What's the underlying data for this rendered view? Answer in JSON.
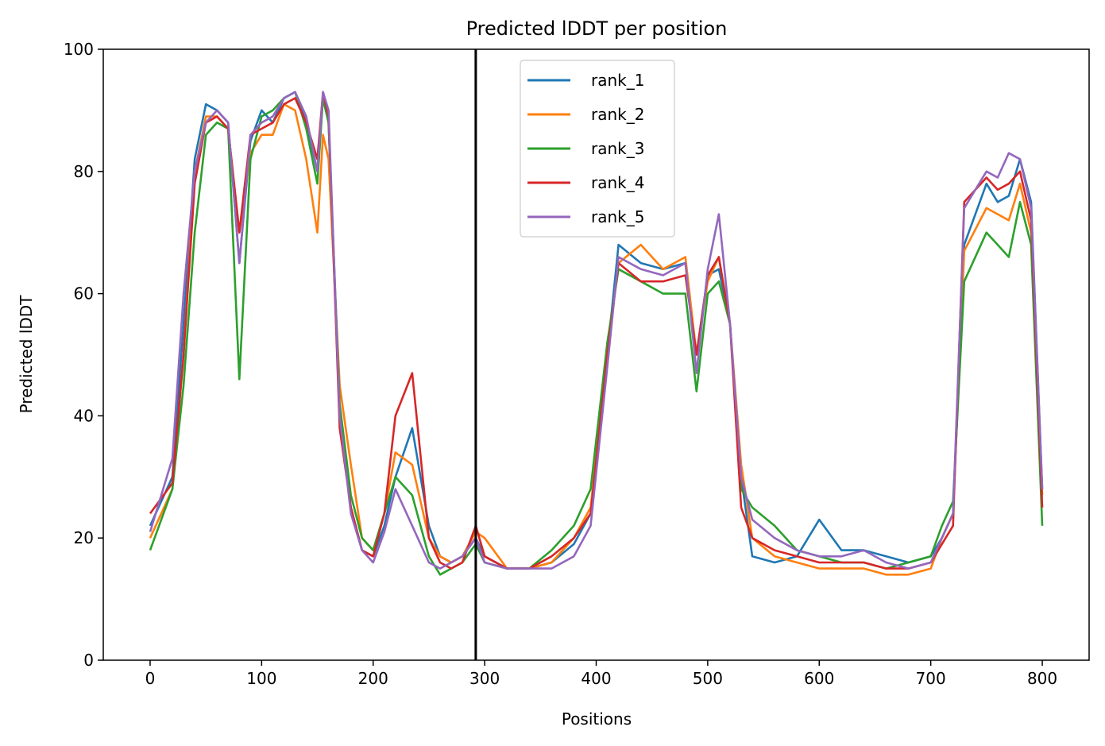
{
  "chart_data": {
    "type": "line",
    "title": "Predicted lDDT per position",
    "xlabel": "Positions",
    "ylabel": "Predicted lDDT",
    "xlim": [
      -42,
      842
    ],
    "ylim": [
      0,
      100
    ],
    "xticks": [
      0,
      100,
      200,
      300,
      400,
      500,
      600,
      700,
      800
    ],
    "yticks": [
      0,
      20,
      40,
      60,
      80,
      100
    ],
    "grid": false,
    "legend_position": "top-center",
    "vline_x": 292,
    "vline_color": "#000000",
    "x": [
      0,
      20,
      30,
      40,
      50,
      60,
      70,
      80,
      90,
      100,
      110,
      120,
      130,
      140,
      150,
      155,
      160,
      170,
      180,
      190,
      200,
      210,
      220,
      235,
      250,
      260,
      270,
      280,
      292,
      300,
      320,
      340,
      360,
      380,
      395,
      410,
      420,
      440,
      460,
      480,
      490,
      500,
      510,
      520,
      530,
      540,
      560,
      580,
      600,
      620,
      640,
      660,
      680,
      700,
      710,
      720,
      730,
      750,
      760,
      770,
      780,
      790,
      800
    ],
    "series": [
      {
        "name": "rank_1",
        "color": "#1f77b4",
        "values": [
          22,
          30,
          55,
          82,
          91,
          90,
          88,
          65,
          85,
          90,
          88,
          92,
          93,
          88,
          80,
          92,
          88,
          40,
          25,
          18,
          17,
          22,
          30,
          38,
          22,
          17,
          16,
          17,
          20,
          17,
          15,
          15,
          16,
          19,
          24,
          50,
          68,
          65,
          64,
          65,
          50,
          63,
          64,
          55,
          30,
          17,
          16,
          17,
          23,
          18,
          18,
          17,
          16,
          17,
          20,
          24,
          68,
          78,
          75,
          76,
          82,
          75,
          28
        ]
      },
      {
        "name": "rank_2",
        "color": "#ff7f0e",
        "values": [
          20,
          28,
          50,
          80,
          89,
          89,
          87,
          70,
          83,
          86,
          86,
          91,
          90,
          82,
          70,
          86,
          82,
          45,
          32,
          20,
          18,
          24,
          34,
          32,
          20,
          17,
          16,
          17,
          21,
          20,
          15,
          15,
          16,
          20,
          25,
          50,
          65,
          68,
          64,
          66,
          50,
          62,
          66,
          55,
          32,
          20,
          17,
          16,
          15,
          15,
          15,
          14,
          14,
          15,
          20,
          24,
          67,
          74,
          73,
          72,
          78,
          70,
          27
        ]
      },
      {
        "name": "rank_3",
        "color": "#2ca02c",
        "values": [
          18,
          28,
          45,
          70,
          86,
          88,
          87,
          46,
          82,
          89,
          90,
          92,
          93,
          87,
          78,
          92,
          88,
          42,
          27,
          20,
          18,
          24,
          30,
          27,
          17,
          14,
          15,
          16,
          19,
          16,
          15,
          15,
          18,
          22,
          28,
          52,
          64,
          62,
          60,
          60,
          44,
          60,
          62,
          55,
          28,
          25,
          22,
          18,
          17,
          16,
          16,
          15,
          16,
          17,
          22,
          26,
          62,
          70,
          68,
          66,
          75,
          68,
          22
        ]
      },
      {
        "name": "rank_4",
        "color": "#d62728",
        "values": [
          24,
          29,
          50,
          78,
          88,
          89,
          87,
          70,
          86,
          87,
          88,
          91,
          92,
          88,
          82,
          93,
          89,
          38,
          25,
          18,
          17,
          24,
          40,
          47,
          20,
          16,
          15,
          16,
          22,
          17,
          15,
          15,
          17,
          20,
          24,
          50,
          65,
          62,
          62,
          63,
          50,
          63,
          66,
          55,
          25,
          20,
          18,
          17,
          16,
          16,
          16,
          15,
          15,
          16,
          19,
          22,
          75,
          79,
          77,
          78,
          80,
          72,
          25
        ]
      },
      {
        "name": "rank_5",
        "color": "#9467bd",
        "values": [
          21,
          33,
          60,
          80,
          88,
          90,
          88,
          65,
          86,
          88,
          89,
          92,
          93,
          89,
          80,
          93,
          90,
          40,
          24,
          18,
          16,
          21,
          28,
          22,
          16,
          15,
          16,
          17,
          20,
          16,
          15,
          15,
          15,
          17,
          22,
          48,
          66,
          64,
          63,
          65,
          47,
          64,
          73,
          55,
          30,
          23,
          20,
          18,
          17,
          17,
          18,
          16,
          15,
          16,
          20,
          24,
          74,
          80,
          79,
          83,
          82,
          74,
          28
        ]
      }
    ]
  }
}
